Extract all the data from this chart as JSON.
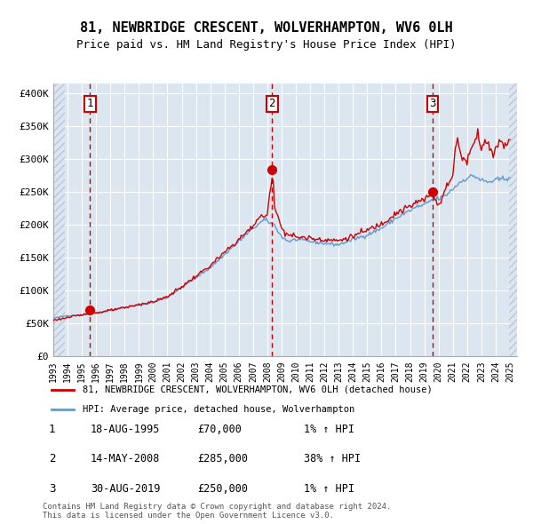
{
  "title": "81, NEWBRIDGE CRESCENT, WOLVERHAMPTON, WV6 0LH",
  "subtitle": "Price paid vs. HM Land Registry's House Price Index (HPI)",
  "background_color": "#dce6f0",
  "plot_bg_color": "#dce6f0",
  "hatch_color": "#b8c8d8",
  "grid_color": "#ffffff",
  "sale_dates": [
    "1995-08-18",
    "2008-05-14",
    "2019-08-30"
  ],
  "sale_prices": [
    70000,
    285000,
    250000
  ],
  "sale_labels": [
    "1",
    "2",
    "3"
  ],
  "sale_pct": [
    "1%",
    "38%",
    "1%"
  ],
  "sale_dates_display": [
    "18-AUG-1995",
    "14-MAY-2008",
    "30-AUG-2019"
  ],
  "sale_prices_display": [
    "£70,000",
    "£285,000",
    "£250,000"
  ],
  "legend_entry1": "81, NEWBRIDGE CRESCENT, WOLVERHAMPTON, WV6 0LH (detached house)",
  "legend_entry2": "HPI: Average price, detached house, Wolverhampton",
  "footer": "Contains HM Land Registry data © Crown copyright and database right 2024.\nThis data is licensed under the Open Government Licence v3.0.",
  "red_line_color": "#cc0000",
  "blue_line_color": "#6699cc",
  "dot_color": "#cc0000",
  "vline_color": "#cc0000",
  "label_box_color": "#cc0000",
  "ylabel_ticks": [
    "£0",
    "£50K",
    "£100K",
    "£150K",
    "£200K",
    "£250K",
    "£300K",
    "£350K",
    "£400K"
  ],
  "ytick_values": [
    0,
    50000,
    100000,
    150000,
    200000,
    250000,
    300000,
    350000,
    400000
  ],
  "xlim_start": 1993.0,
  "xlim_end": 2025.5,
  "ylim_min": 0,
  "ylim_max": 415000
}
